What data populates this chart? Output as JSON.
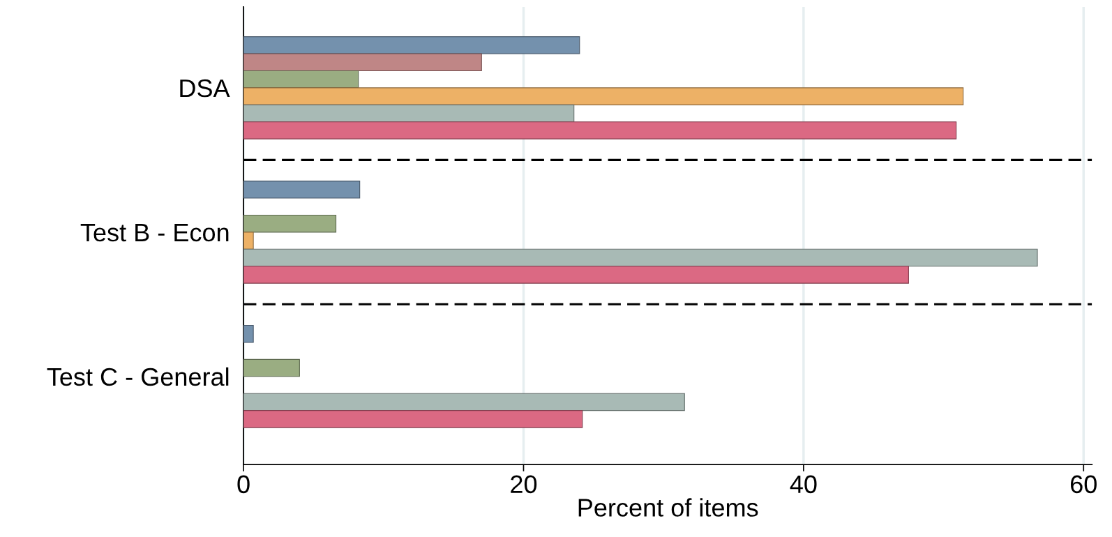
{
  "chart_data": {
    "type": "bar",
    "orientation": "horizontal",
    "xlabel": "Percent of items",
    "categories": [
      "DSA",
      "Test B - Econ",
      "Test C - General"
    ],
    "series": [
      {
        "color": "#7491ad",
        "values": [
          24.0,
          8.3,
          0.7
        ]
      },
      {
        "color": "#bf8686",
        "values": [
          17.0,
          null,
          null
        ]
      },
      {
        "color": "#9aad82",
        "values": [
          8.2,
          6.6,
          4.0
        ]
      },
      {
        "color": "#edb166",
        "values": [
          51.4,
          0.7,
          null
        ]
      },
      {
        "color": "#a8bab5",
        "values": [
          23.6,
          56.7,
          31.5
        ]
      },
      {
        "color": "#db6983",
        "values": [
          50.9,
          47.5,
          24.2
        ]
      }
    ],
    "xlim": [
      0,
      60.6
    ],
    "xticks": [
      0,
      20,
      40,
      60
    ],
    "grid": "x"
  }
}
